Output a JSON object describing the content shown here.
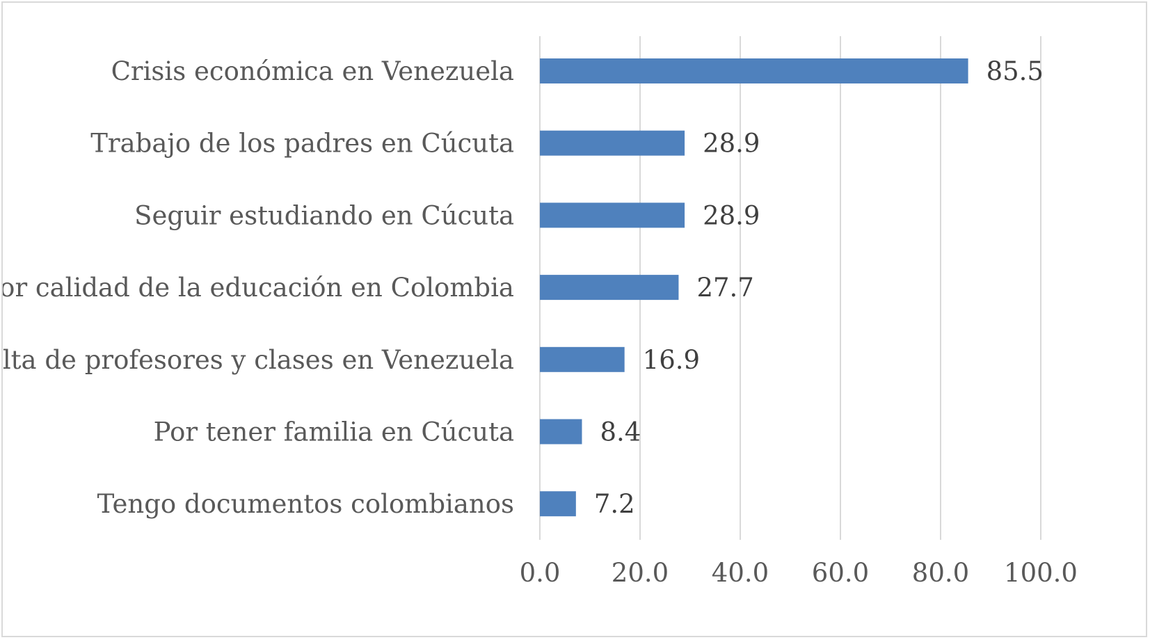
{
  "chart_data": {
    "type": "bar",
    "orientation": "horizontal",
    "categories": [
      "Crisis económica en Venezuela",
      "Trabajo de los padres en Cúcuta",
      "Seguir estudiando en Cúcuta",
      "Mejor calidad de la educación en Colombia",
      "Falta de profesores y clases en Venezuela",
      "Por tener familia en Cúcuta",
      "Tengo documentos colombianos"
    ],
    "values": [
      85.5,
      28.9,
      28.9,
      27.7,
      16.9,
      8.4,
      7.2
    ],
    "data_labels": [
      "85.5",
      "28.9",
      "28.9",
      "27.7",
      "16.9",
      "8.4",
      "7.2"
    ],
    "xlim": [
      0,
      100
    ],
    "x_ticks": [
      0,
      20,
      40,
      60,
      80,
      100
    ],
    "x_tick_labels": [
      "0.0",
      "20.0",
      "40.0",
      "60.0",
      "80.0",
      "100.0"
    ],
    "title": "",
    "xlabel": "",
    "ylabel": "",
    "grid": "vertical",
    "legend": "none",
    "colors": {
      "bar": "#4f81bd",
      "grid": "#d9d9d9",
      "axis_text": "#595959",
      "data_label_text": "#404040",
      "frame": "#d9d9d9"
    }
  }
}
